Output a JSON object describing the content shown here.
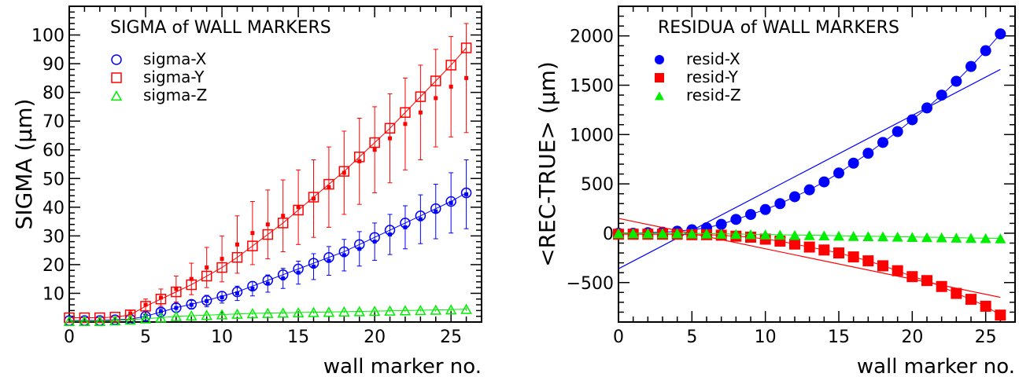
{
  "chart_data": [
    {
      "type": "scatter",
      "title": "SIGMA of WALL MARKERS",
      "xlabel": "wall marker no.",
      "ylabel": "SIGMA (μm)",
      "xlim": [
        0,
        27
      ],
      "ylim": [
        0,
        110
      ],
      "xticks": [
        0,
        5,
        10,
        15,
        20,
        25
      ],
      "yticks": [
        10,
        20,
        30,
        40,
        50,
        60,
        70,
        80,
        90,
        100
      ],
      "legend_position": "top-left",
      "x": [
        0,
        1,
        2,
        3,
        4,
        5,
        6,
        7,
        8,
        9,
        10,
        11,
        12,
        13,
        14,
        15,
        16,
        17,
        18,
        19,
        20,
        21,
        22,
        23,
        24,
        25,
        26
      ],
      "series": [
        {
          "name": "sigma-X",
          "color": "#0000ff",
          "marker": "open-circle",
          "values": [
            0.5,
            0.5,
            0.5,
            0.8,
            1.0,
            2.0,
            3.5,
            5.0,
            6.2,
            7.5,
            9.0,
            10.5,
            12.5,
            14.5,
            16.5,
            18.5,
            20.5,
            22.5,
            24.5,
            27.0,
            29.5,
            32.0,
            34.5,
            37.0,
            39.5,
            42.0,
            45.0
          ],
          "points": [
            null,
            null,
            null,
            null,
            null,
            2.2,
            3.6,
            4.9,
            6.0,
            7.3,
            8.6,
            10.0,
            11.6,
            13.4,
            15.2,
            17.2,
            19.3,
            21.3,
            23.3,
            25.5,
            28.0,
            30.5,
            33.0,
            35.8,
            38.5,
            41.5,
            44.5
          ],
          "errors": [
            0,
            0,
            0,
            0,
            0,
            0.5,
            1.0,
            1.5,
            1.5,
            2.0,
            2.0,
            2.5,
            2.5,
            3.0,
            3.5,
            4.0,
            4.5,
            5.0,
            5.5,
            6.0,
            6.5,
            7.0,
            7.5,
            8.5,
            9.5,
            10.5,
            12.0
          ]
        },
        {
          "name": "sigma-Y",
          "color": "#ff0000",
          "marker": "open-square",
          "values": [
            1.5,
            1.5,
            1.5,
            1.7,
            2.5,
            5.5,
            8.0,
            10.5,
            13.0,
            16.0,
            19.0,
            22.5,
            26.5,
            30.5,
            34.5,
            39.0,
            43.5,
            48.0,
            52.5,
            57.5,
            62.5,
            67.5,
            73.0,
            78.5,
            84.0,
            89.5,
            95.5
          ],
          "points": [
            null,
            null,
            null,
            null,
            3.0,
            6.0,
            8.5,
            11.5,
            15.0,
            19.0,
            22.0,
            27.0,
            31.0,
            34.0,
            37.0,
            40.0,
            43.0,
            47.0,
            52.0,
            56.0,
            60.0,
            64.0,
            69.0,
            73.0,
            78.0,
            82.0,
            85.0
          ],
          "errors": [
            0,
            0,
            0,
            0,
            1.0,
            2.0,
            3.0,
            4.5,
            5.5,
            7.0,
            8.0,
            10.0,
            11.0,
            12.0,
            12.5,
            13.0,
            13.5,
            14.0,
            14.5,
            15.0,
            15.0,
            15.5,
            16.0,
            16.5,
            17.0,
            17.5,
            19.0
          ]
        },
        {
          "name": "sigma-Z",
          "color": "#00ee00",
          "marker": "open-triangle",
          "values": [
            0.3,
            0.3,
            0.3,
            0.5,
            0.8,
            1.2,
            1.5,
            2.0,
            2.2,
            2.4,
            2.6,
            2.8,
            3.0,
            3.1,
            3.2,
            3.3,
            3.4,
            3.5,
            3.6,
            3.7,
            3.8,
            3.9,
            4.0,
            4.1,
            4.2,
            4.3,
            4.5
          ],
          "errors": [
            0,
            0,
            0,
            0,
            0,
            0,
            0.3,
            0.4,
            0.4,
            0.5,
            0.5,
            0.5,
            0.5,
            0.5,
            0.5,
            0.5,
            0.5,
            0.5,
            0.5,
            0.5,
            0.5,
            0.5,
            0.5,
            0.5,
            0.6,
            0.6,
            0.7
          ]
        }
      ]
    },
    {
      "type": "scatter",
      "title": "RESIDUA of WALL MARKERS",
      "xlabel": "wall marker no.",
      "ylabel": "<REC-TRUE> (μm)",
      "xlim": [
        0,
        27
      ],
      "ylim": [
        -900,
        2300
      ],
      "xticks": [
        0,
        5,
        10,
        15,
        20,
        25
      ],
      "yticks": [
        -500,
        0,
        500,
        1000,
        1500,
        2000
      ],
      "legend_position": "top-left",
      "x": [
        0,
        1,
        2,
        3,
        4,
        5,
        6,
        7,
        8,
        9,
        10,
        11,
        12,
        13,
        14,
        15,
        16,
        17,
        18,
        19,
        20,
        21,
        22,
        23,
        24,
        25,
        26
      ],
      "series": [
        {
          "name": "resid-X",
          "color": "#0000ff",
          "marker": "filled-circle",
          "values": [
            0,
            0,
            5,
            10,
            20,
            35,
            55,
            90,
            140,
            190,
            240,
            300,
            370,
            440,
            520,
            610,
            710,
            810,
            920,
            1030,
            1150,
            1270,
            1400,
            1540,
            1690,
            1850,
            2020
          ],
          "fit_line": [
            -360,
            1660
          ]
        },
        {
          "name": "resid-Y",
          "color": "#ff0000",
          "marker": "filled-square",
          "values": [
            -10,
            -10,
            -10,
            -10,
            -10,
            -15,
            -15,
            -20,
            -30,
            -40,
            -60,
            -80,
            -110,
            -140,
            -170,
            -200,
            -240,
            -280,
            -330,
            -380,
            -440,
            -480,
            -540,
            -610,
            -670,
            -740,
            -830
          ],
          "fit_line": [
            150,
            -650
          ]
        },
        {
          "name": "resid-Z",
          "color": "#00ee00",
          "marker": "filled-triangle",
          "values": [
            0,
            0,
            0,
            0,
            0,
            -2,
            -3,
            -5,
            -8,
            -10,
            -12,
            -15,
            -18,
            -20,
            -22,
            -25,
            -28,
            -30,
            -32,
            -35,
            -38,
            -40,
            -42,
            -45,
            -48,
            -50,
            -52
          ]
        }
      ]
    }
  ]
}
